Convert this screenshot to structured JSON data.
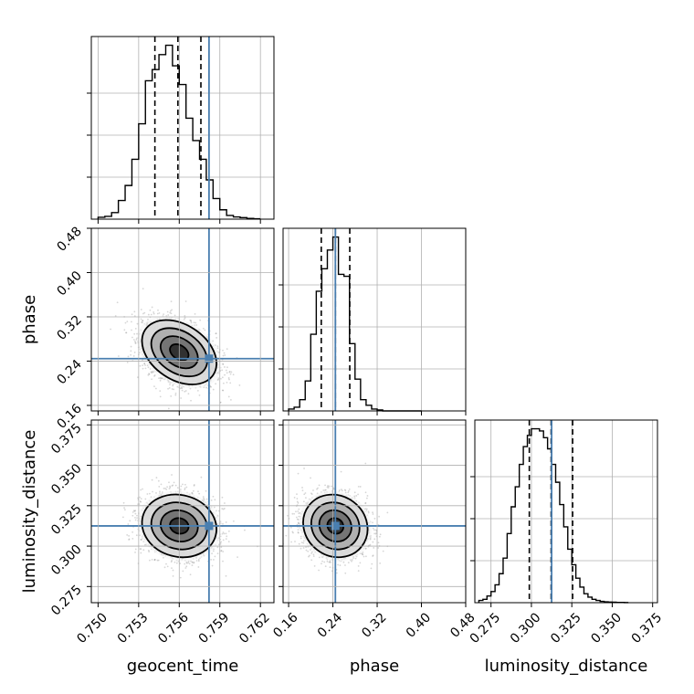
{
  "chart_data": {
    "type": "corner",
    "parameters": [
      "geocent_time",
      "phase",
      "luminosity_distance"
    ],
    "truths": {
      "geocent_time": 0.7582,
      "phase": 0.2445,
      "luminosity_distance": 0.3125
    },
    "truth_color": "#4a7fb0",
    "axes": {
      "geocent_time": {
        "range": [
          0.7495,
          0.763
        ],
        "ticks": [
          0.75,
          0.753,
          0.756,
          0.759,
          0.762
        ],
        "tick_labels": [
          "0.750",
          "0.753",
          "0.756",
          "0.759",
          "0.762"
        ],
        "label": "geocent_time"
      },
      "phase": {
        "range": [
          0.15,
          0.48
        ],
        "ticks": [
          0.16,
          0.24,
          0.32,
          0.4,
          0.48
        ],
        "tick_labels": [
          "0.16",
          "0.24",
          "0.32",
          "0.40",
          "0.48"
        ],
        "label": "phase"
      },
      "luminosity_distance": {
        "range": [
          0.265,
          0.378
        ],
        "ticks": [
          0.275,
          0.3,
          0.325,
          0.35,
          0.375
        ],
        "tick_labels": [
          "0.275",
          "0.300",
          "0.325",
          "0.350",
          "0.375"
        ],
        "label": "luminosity_distance"
      }
    },
    "histograms": {
      "geocent_time": {
        "bin_edges": [
          0.75,
          0.7505,
          0.751,
          0.7515,
          0.752,
          0.7525,
          0.753,
          0.7535,
          0.754,
          0.7545,
          0.755,
          0.7555,
          0.756,
          0.7565,
          0.757,
          0.7575,
          0.758,
          0.7585,
          0.759,
          0.7595,
          0.76,
          0.7605,
          0.761,
          0.7615,
          0.762
        ],
        "counts": [
          0.01,
          0.015,
          0.035,
          0.1,
          0.18,
          0.32,
          0.51,
          0.74,
          0.8,
          0.88,
          0.93,
          0.82,
          0.72,
          0.54,
          0.42,
          0.32,
          0.21,
          0.11,
          0.05,
          0.02,
          0.012,
          0.008,
          0.004,
          0.002
        ],
        "quantiles": [
          0.7542,
          0.7559,
          0.7576
        ]
      },
      "phase": {
        "bin_edges": [
          0.16,
          0.17,
          0.18,
          0.19,
          0.2,
          0.21,
          0.22,
          0.23,
          0.24,
          0.25,
          0.26,
          0.27,
          0.28,
          0.29,
          0.3,
          0.31,
          0.32,
          0.33,
          0.34,
          0.35,
          0.36,
          0.37,
          0.38,
          0.39,
          0.4
        ],
        "counts": [
          0.01,
          0.02,
          0.06,
          0.16,
          0.41,
          0.64,
          0.76,
          0.86,
          0.93,
          0.73,
          0.72,
          0.36,
          0.17,
          0.06,
          0.03,
          0.01,
          0.005,
          0,
          0,
          0,
          0,
          0,
          0,
          0
        ],
        "quantiles": [
          0.219,
          0.2445,
          0.2705
        ]
      },
      "luminosity_distance": {
        "bin_edges": [
          0.2675,
          0.27,
          0.2725,
          0.275,
          0.2775,
          0.28,
          0.2825,
          0.285,
          0.2875,
          0.29,
          0.2925,
          0.295,
          0.2975,
          0.3,
          0.3025,
          0.305,
          0.3075,
          0.31,
          0.3125,
          0.315,
          0.3175,
          0.32,
          0.3225,
          0.325,
          0.3275,
          0.33,
          0.3325,
          0.335,
          0.3375,
          0.34,
          0.3425,
          0.345,
          0.3475,
          0.35,
          0.3525,
          0.355,
          0.3575,
          0.36
        ],
        "counts": [
          0.01,
          0.015,
          0.03,
          0.05,
          0.08,
          0.13,
          0.2,
          0.31,
          0.43,
          0.52,
          0.62,
          0.7,
          0.75,
          0.78,
          0.78,
          0.77,
          0.74,
          0.69,
          0.62,
          0.54,
          0.44,
          0.34,
          0.24,
          0.17,
          0.11,
          0.07,
          0.04,
          0.025,
          0.015,
          0.01,
          0.006,
          0.004,
          0.003,
          0.002,
          0.001,
          0.001,
          0.0005
        ],
        "quantiles": [
          0.2987,
          0.3122,
          0.3255
        ]
      }
    },
    "contour_2d": [
      {
        "x": "geocent_time",
        "y": "phase",
        "center": [
          0.756,
          0.256
        ],
        "sigma": [
          0.00135,
          0.0285
        ],
        "rho": -0.35
      },
      {
        "x": "geocent_time",
        "y": "luminosity_distance",
        "center": [
          0.756,
          0.3125
        ],
        "sigma": [
          0.00135,
          0.0095
        ],
        "rho": -0.1
      },
      {
        "x": "phase",
        "y": "luminosity_distance",
        "center": [
          0.2445,
          0.3125
        ],
        "sigma": [
          0.0285,
          0.0095
        ],
        "rho": -0.1
      }
    ],
    "contour_levels_sigma": [
      0.5,
      1.0,
      1.5,
      2.0
    ],
    "grid": true
  }
}
